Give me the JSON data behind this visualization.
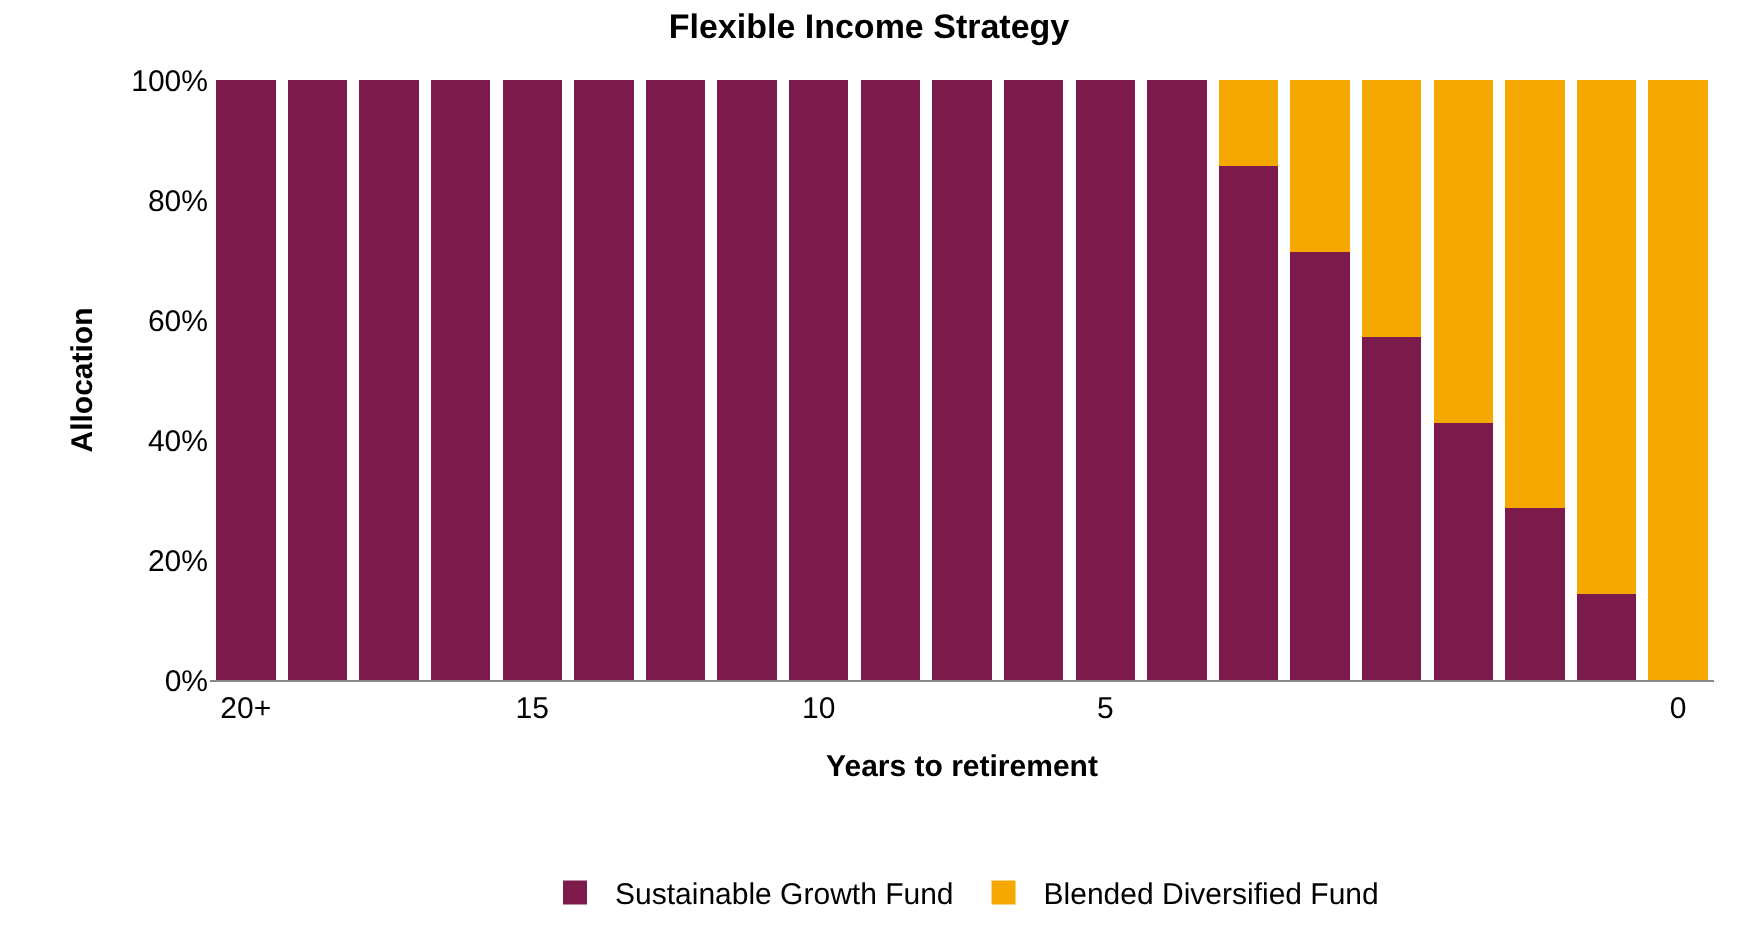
{
  "chart_data": {
    "type": "bar",
    "title": "Flexible Income Strategy",
    "xlabel": "Years to retirement",
    "ylabel": "Allocation",
    "categories": [
      "20+",
      null,
      null,
      null,
      "15",
      null,
      null,
      null,
      "10",
      null,
      null,
      null,
      "5",
      null,
      null,
      null,
      null,
      null,
      null,
      null,
      "0"
    ],
    "stacked": true,
    "legend": "bottom",
    "series": [
      {
        "name": "Sustainable Growth Fund",
        "color": "#7b1a4b",
        "values": [
          100,
          100,
          100,
          100,
          100,
          100,
          100,
          100,
          100,
          100,
          100,
          100,
          100,
          100,
          85.7,
          71.4,
          57.1,
          42.9,
          28.6,
          14.3,
          0
        ]
      },
      {
        "name": "Blended Diversified Fund",
        "color": "#f5a800",
        "values": [
          0,
          0,
          0,
          0,
          0,
          0,
          0,
          0,
          0,
          0,
          0,
          0,
          0,
          0,
          14.3,
          28.6,
          42.9,
          57.1,
          71.4,
          85.7,
          100
        ]
      }
    ],
    "ylim": [
      0,
      100
    ],
    "yticks": [
      {
        "value": 0,
        "label": "0%"
      },
      {
        "value": 20,
        "label": "20%"
      },
      {
        "value": 40,
        "label": "40%"
      },
      {
        "value": 60,
        "label": "60%"
      },
      {
        "value": 80,
        "label": "80%"
      },
      {
        "value": 100,
        "label": "100%"
      }
    ]
  }
}
